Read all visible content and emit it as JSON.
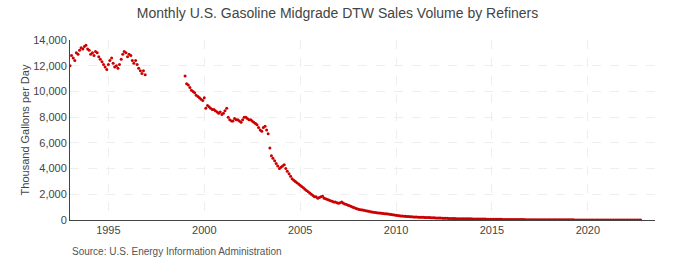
{
  "chart_data": {
    "type": "scatter",
    "title": "Monthly U.S. Gasoline Midgrade DTW Sales Volume by Refiners",
    "ylabel": "Thousand Gallons per Day",
    "annotations": [
      "Source: U.S. Energy Information Administration"
    ],
    "color": "#cc0000",
    "marker": "circle",
    "grid": true,
    "xlim": [
      1993.0,
      2023.5
    ],
    "xticks": [
      1995,
      2000,
      2005,
      2010,
      2015,
      2020
    ],
    "ylim": [
      0,
      14000
    ],
    "yticks": [
      0,
      {
        "value": 2000,
        "label": "2,000"
      },
      {
        "value": 4000,
        "label": "4,000"
      },
      {
        "value": 6000,
        "label": "6,000"
      },
      {
        "value": 8000,
        "label": "8,000"
      },
      {
        "value": 10000,
        "label": "10,000"
      },
      {
        "value": 12000,
        "label": "12,000"
      },
      {
        "value": 14000,
        "label": "14,000"
      }
    ],
    "series": [
      {
        "color": "#cc0000",
        "x": [
          1993.0,
          1993.08,
          1993.17,
          1993.25,
          1993.33,
          1993.42,
          1993.5,
          1993.58,
          1993.67,
          1993.75,
          1993.83,
          1993.92,
          1994.0,
          1994.08,
          1994.17,
          1994.25,
          1994.33,
          1994.42,
          1994.5,
          1994.58,
          1994.67,
          1994.75,
          1994.83,
          1994.92,
          1995.0,
          1995.08,
          1995.17,
          1995.25,
          1995.33,
          1995.42,
          1995.5,
          1995.58,
          1995.67,
          1995.75,
          1995.83,
          1995.92,
          1996.0,
          1996.08,
          1996.17,
          1996.25,
          1996.33,
          1996.42,
          1996.5,
          1996.58,
          1996.67,
          1996.75,
          1996.83,
          1996.92
        ],
        "values": [
          12000,
          12800,
          12600,
          12400,
          13000,
          12900,
          13200,
          13400,
          13300,
          13500,
          13600,
          13300,
          13200,
          12900,
          13000,
          12800,
          13100,
          13000,
          12700,
          12500,
          12300,
          12100,
          11900,
          11700,
          12100,
          12400,
          12600,
          12200,
          11900,
          12000,
          11800,
          12100,
          12500,
          12900,
          13100,
          13000,
          12700,
          12900,
          12800,
          12400,
          12200,
          12400,
          12100,
          11800,
          11600,
          11400,
          11600,
          11300
        ]
      },
      {
        "color": "#cc0000",
        "x": [
          1999.0,
          1999.08,
          1999.17,
          1999.25,
          1999.33,
          1999.42,
          1999.5,
          1999.58,
          1999.67,
          1999.75,
          1999.83,
          1999.92,
          2000.0,
          2000.08,
          2000.17,
          2000.25,
          2000.33,
          2000.42,
          2000.5,
          2000.58,
          2000.67,
          2000.75,
          2000.83,
          2000.92,
          2001.0,
          2001.08,
          2001.17,
          2001.25,
          2001.33,
          2001.42,
          2001.5,
          2001.58,
          2001.67,
          2001.75,
          2001.83,
          2001.92,
          2002.0,
          2002.08,
          2002.17,
          2002.25,
          2002.33,
          2002.42,
          2002.5,
          2002.58,
          2002.67,
          2002.75,
          2002.83,
          2002.92,
          2003.0,
          2003.08,
          2003.17,
          2003.25,
          2003.33,
          2003.42,
          2003.5,
          2003.58,
          2003.67,
          2003.75,
          2003.83,
          2003.92,
          2004.0,
          2004.08,
          2004.17,
          2004.25,
          2004.33,
          2004.42,
          2004.5,
          2004.58,
          2004.67,
          2004.75,
          2004.83,
          2004.92,
          2005.0,
          2005.08,
          2005.17,
          2005.25,
          2005.33,
          2005.42,
          2005.5,
          2005.58,
          2005.67,
          2005.75,
          2005.83,
          2005.92,
          2006.0,
          2006.08,
          2006.17,
          2006.25,
          2006.33,
          2006.42,
          2006.5,
          2006.58,
          2006.67,
          2006.75,
          2006.83,
          2006.92,
          2007.0,
          2007.08,
          2007.17,
          2007.25,
          2007.33,
          2007.42,
          2007.5,
          2007.58,
          2007.67,
          2007.75,
          2007.83,
          2007.92,
          2008.0,
          2008.08,
          2008.17,
          2008.25,
          2008.33,
          2008.42,
          2008.5,
          2008.58,
          2008.67,
          2008.75,
          2008.83,
          2008.92,
          2009.0,
          2009.08,
          2009.17,
          2009.25,
          2009.33,
          2009.42,
          2009.5,
          2009.58,
          2009.67,
          2009.75,
          2009.83,
          2009.92,
          2010.0,
          2010.08,
          2010.17,
          2010.25,
          2010.33,
          2010.42,
          2010.5,
          2010.58,
          2010.67,
          2010.75,
          2010.83,
          2010.92,
          2011.0,
          2011.08,
          2011.17,
          2011.25,
          2011.33,
          2011.42,
          2011.5,
          2011.58,
          2011.67,
          2011.75,
          2011.83,
          2011.92,
          2012.0,
          2012.08,
          2012.17,
          2012.25,
          2012.33,
          2012.42,
          2012.5,
          2012.58,
          2012.67,
          2012.75,
          2012.83,
          2012.92,
          2013.0,
          2013.08,
          2013.17,
          2013.25,
          2013.33,
          2013.42,
          2013.5,
          2013.58,
          2013.67,
          2013.75,
          2013.83,
          2013.92,
          2014.0,
          2014.08,
          2014.17,
          2014.25,
          2014.33,
          2014.42,
          2014.5,
          2014.58,
          2014.67,
          2014.75,
          2014.83,
          2014.92,
          2015.0,
          2015.08,
          2015.17,
          2015.25,
          2015.33,
          2015.42,
          2015.5,
          2015.58,
          2015.67,
          2015.75,
          2015.83,
          2015.92,
          2016.0,
          2016.08,
          2016.17,
          2016.25,
          2016.33,
          2016.42,
          2016.5,
          2016.58,
          2016.67,
          2016.75,
          2016.83,
          2016.92,
          2017.0,
          2017.08,
          2017.17,
          2017.25,
          2017.33,
          2017.42,
          2017.5,
          2017.58,
          2017.67,
          2017.75,
          2017.83,
          2017.92,
          2018.0,
          2018.08,
          2018.17,
          2018.25,
          2018.33,
          2018.42,
          2018.5,
          2018.58,
          2018.67,
          2018.75,
          2018.83,
          2018.92,
          2019.0,
          2019.08,
          2019.17,
          2019.25,
          2019.33,
          2019.42,
          2019.5,
          2019.58,
          2019.67,
          2019.75,
          2019.83,
          2019.92,
          2020.0,
          2020.08,
          2020.17,
          2020.25,
          2020.33,
          2020.42,
          2020.5,
          2020.58,
          2020.67,
          2020.75,
          2020.83,
          2020.92,
          2021.0,
          2021.08,
          2021.17,
          2021.25,
          2021.33,
          2021.42,
          2021.5,
          2021.58,
          2021.67,
          2021.75,
          2021.83,
          2021.92,
          2022.0,
          2022.08,
          2022.17,
          2022.25,
          2022.33,
          2022.42,
          2022.5,
          2022.58,
          2022.67,
          2022.75
        ],
        "values": [
          11200,
          10600,
          10500,
          10300,
          10100,
          10000,
          9900,
          9700,
          9600,
          9500,
          9400,
          9300,
          9500,
          8700,
          8900,
          8800,
          8700,
          8600,
          8600,
          8500,
          8400,
          8300,
          8400,
          8200,
          8300,
          8500,
          8700,
          8000,
          7800,
          7700,
          7700,
          7900,
          7800,
          7800,
          7700,
          7600,
          7800,
          8000,
          8000,
          7900,
          7800,
          7800,
          7700,
          7600,
          7500,
          7400,
          7200,
          7000,
          6900,
          7200,
          7300,
          7000,
          6700,
          5600,
          5000,
          4800,
          4600,
          4400,
          4200,
          4000,
          4100,
          4200,
          4300,
          4000,
          3800,
          3600,
          3400,
          3200,
          3100,
          3000,
          2900,
          2800,
          2700,
          2600,
          2500,
          2400,
          2300,
          2200,
          2100,
          2000,
          1900,
          1800,
          1800,
          1700,
          1750,
          1800,
          1850,
          1700,
          1650,
          1600,
          1550,
          1500,
          1450,
          1400,
          1400,
          1350,
          1300,
          1350,
          1400,
          1300,
          1250,
          1200,
          1150,
          1100,
          1050,
          1000,
          950,
          900,
          850,
          820,
          800,
          780,
          750,
          720,
          700,
          680,
          650,
          620,
          600,
          580,
          560,
          550,
          540,
          520,
          510,
          490,
          480,
          460,
          440,
          420,
          400,
          380,
          360,
          350,
          340,
          320,
          310,
          300,
          290,
          280,
          270,
          260,
          250,
          240,
          230,
          225,
          220,
          215,
          210,
          205,
          200,
          195,
          190,
          185,
          180,
          175,
          170,
          165,
          160,
          155,
          150,
          145,
          140,
          135,
          130,
          125,
          120,
          115,
          110,
          108,
          106,
          104,
          102,
          100,
          98,
          96,
          94,
          92,
          90,
          88,
          86,
          84,
          82,
          80,
          78,
          76,
          74,
          72,
          70,
          68,
          66,
          64,
          62,
          60,
          58,
          56,
          54,
          52,
          50,
          48,
          46,
          44,
          42,
          40,
          38,
          37,
          36,
          35,
          34,
          33,
          32,
          31,
          30,
          29,
          28,
          27,
          26,
          25,
          24,
          23,
          22,
          21,
          20,
          20,
          19,
          19,
          18,
          18,
          17,
          17,
          16,
          16,
          15,
          15,
          14,
          14,
          13,
          13,
          12,
          12,
          11,
          11,
          10,
          10,
          9,
          9,
          8,
          8,
          7,
          7,
          6,
          6,
          5,
          5,
          4,
          4,
          4,
          3,
          3,
          3,
          3,
          2,
          2,
          2,
          2,
          2,
          2,
          1,
          1,
          1,
          1,
          1,
          1,
          1,
          1,
          1,
          1,
          1,
          1,
          1,
          1,
          1,
          1,
          1,
          1,
          1
        ]
      }
    ]
  }
}
